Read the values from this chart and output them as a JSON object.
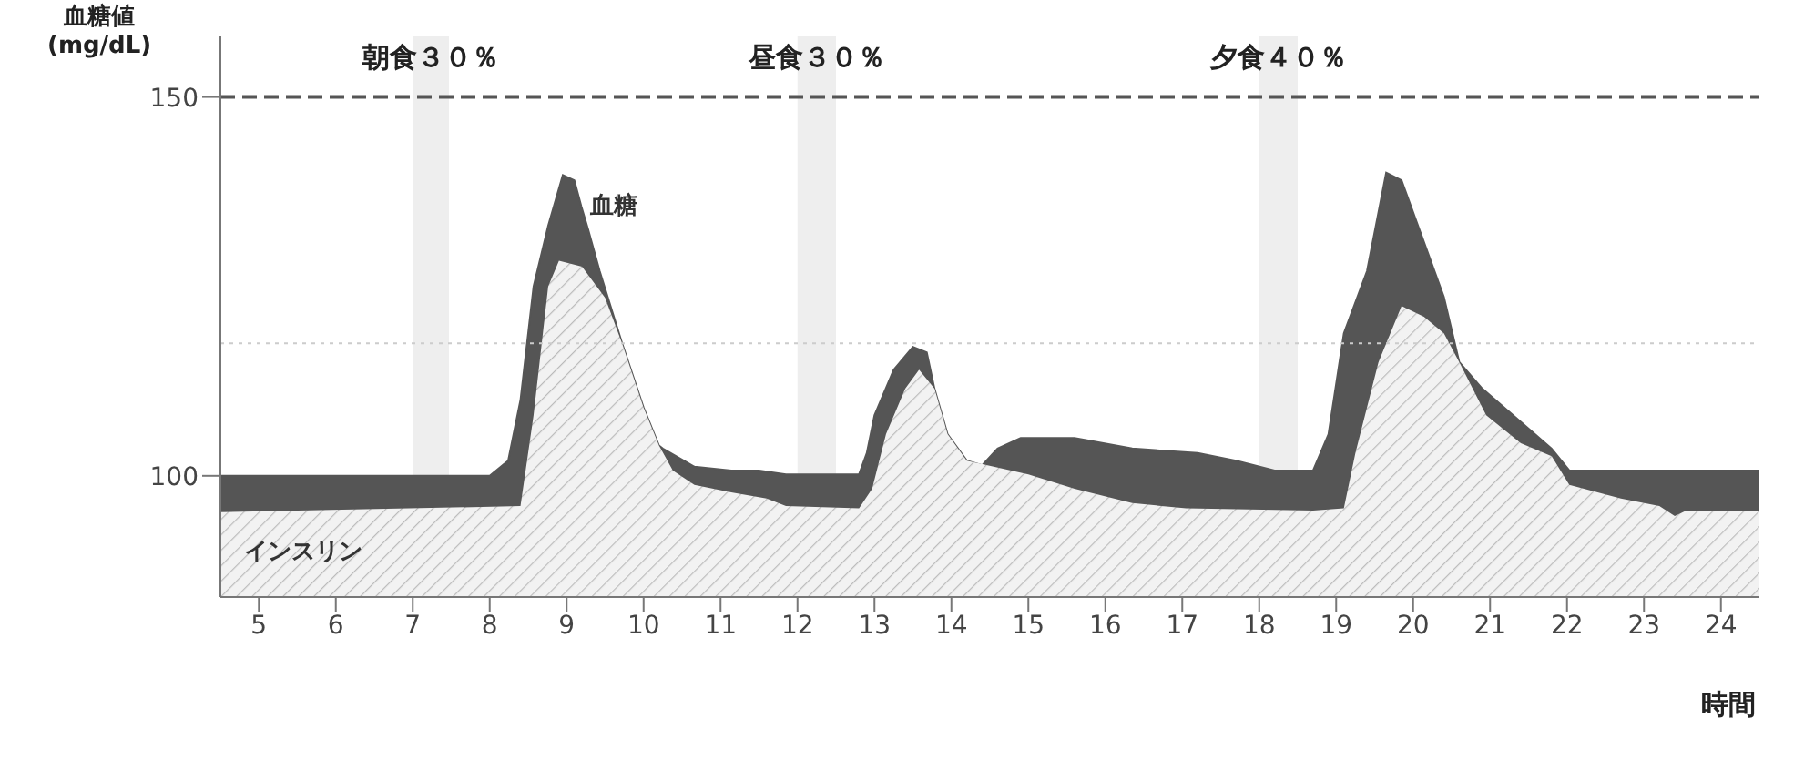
{
  "chart_data": {
    "type": "area",
    "ylabel": "血糖値 (mg/dL)",
    "xlabel": "時間",
    "xlim": [
      4.5,
      24.5
    ],
    "xticks": [
      5,
      6,
      7,
      8,
      9,
      10,
      11,
      12,
      13,
      14,
      15,
      16,
      17,
      18,
      19,
      20,
      21,
      22,
      23,
      24
    ],
    "ylim": [
      84,
      158
    ],
    "yticks": [
      100,
      150
    ],
    "grid": false,
    "legend": false,
    "series": [
      {
        "color": "#555555",
        "x": [
          4.5,
          8,
          8.24,
          8.4,
          8.57,
          8.76,
          8.95,
          9.1,
          9.19,
          9.28,
          9.43,
          9.72,
          10,
          10.2,
          10.25,
          10.66,
          11.14,
          11.5,
          11.85,
          12.8,
          12.9,
          13,
          13.25,
          13.5,
          13.68,
          13.78,
          13.95,
          14.2,
          14.4,
          14.6,
          14.9,
          15.6,
          16.35,
          17.2,
          17.7,
          18.2,
          18.7,
          18.9,
          19.1,
          19.4,
          19.65,
          19.85,
          20.1,
          20.4,
          20.6,
          20.9,
          21.3,
          21.8,
          22.03,
          24.5
        ],
        "values": [
          100,
          100,
          102,
          110,
          125,
          133,
          139.7,
          139,
          135.6,
          132.5,
          127,
          117.5,
          109,
          104,
          103.6,
          101.2,
          100.7,
          100.7,
          100.2,
          100.2,
          103,
          108,
          114,
          117,
          116.3,
          111.5,
          105.5,
          102,
          101.4,
          103.6,
          105,
          105,
          103.6,
          103,
          102,
          100.7,
          100.7,
          105.5,
          118.8,
          127,
          140,
          139,
          132,
          123.6,
          115,
          111.5,
          108,
          103.6,
          100.7,
          100.7
        ]
      },
      {
        "color": "#bbbbbb",
        "x": [
          4.5,
          8.4,
          8.57,
          8.76,
          8.9,
          9.2,
          9.5,
          9.72,
          10,
          10.2,
          10.38,
          10.66,
          11.14,
          11.6,
          11.85,
          12.8,
          12.97,
          13.15,
          13.4,
          13.58,
          13.78,
          13.95,
          14.2,
          14.55,
          15,
          15.6,
          16.35,
          17.05,
          18.7,
          19.1,
          19.25,
          19.55,
          19.85,
          20.14,
          20.4,
          20.6,
          20.95,
          21.4,
          21.8,
          22.03,
          22.7,
          23.2,
          23.4,
          23.55,
          24.5
        ],
        "values": [
          95.2,
          96,
          108,
          125,
          128.4,
          127.6,
          123.5,
          117.5,
          109,
          104,
          100.7,
          98.8,
          97.8,
          97,
          96,
          95.7,
          98.3,
          105.5,
          111.5,
          114,
          111.5,
          105.5,
          102,
          101.2,
          100.2,
          98.3,
          96.4,
          95.7,
          95.4,
          95.7,
          103,
          115,
          122.4,
          121,
          118.8,
          115,
          108,
          104.3,
          102.6,
          98.8,
          97,
          96,
          94.7,
          95.4,
          95.4
        ]
      }
    ],
    "bands": [
      {
        "axis": "x",
        "from": 7,
        "to": 7.47,
        "label": "朝食３０％",
        "color": "#eeeeee"
      },
      {
        "axis": "x",
        "from": 12,
        "to": 12.5,
        "label": "昼食３０％",
        "color": "#eeeeee"
      },
      {
        "axis": "x",
        "from": 18,
        "to": 18.5,
        "label": "夕食４０％",
        "color": "#eeeeee"
      }
    ],
    "ref_lines": [
      {
        "axis": "y",
        "value": 150,
        "line_style": "dashed",
        "color": "#555555"
      },
      {
        "axis": "y",
        "value": 117.5,
        "line_style": "dotted",
        "color": "#cccccc"
      }
    ],
    "annotations": [
      "血糖",
      "インスリン"
    ]
  }
}
